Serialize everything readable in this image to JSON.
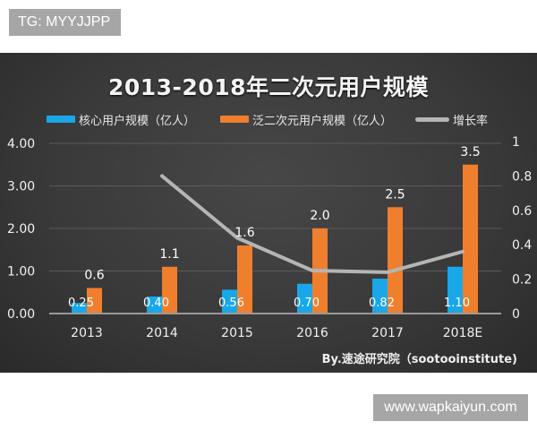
{
  "watermarks": {
    "top": "TG: MYYJJPP",
    "bottom": "www.wapkaiyun.com"
  },
  "chart_data": {
    "type": "bar",
    "title": "2013-2018年二次元用户规模",
    "categories": [
      "2013",
      "2014",
      "2015",
      "2016",
      "2017",
      "2018E"
    ],
    "series": [
      {
        "name": "核心用户规模（亿人）",
        "type": "bar",
        "axis": "left",
        "color": "#1aa7e8",
        "values": [
          0.25,
          0.4,
          0.56,
          0.7,
          0.82,
          1.1
        ],
        "labels": [
          "0.25",
          "0.40",
          "0.56",
          "0.70",
          "0.82",
          "1.10"
        ]
      },
      {
        "name": "泛二次元用户规模（亿人）",
        "type": "bar",
        "axis": "left",
        "color": "#f07f2d",
        "values": [
          0.6,
          1.1,
          1.6,
          2.0,
          2.5,
          3.5
        ],
        "labels": [
          "0.6",
          "1.1",
          "1.6",
          "2.0",
          "2.5",
          "3.5"
        ]
      },
      {
        "name": "增长率",
        "type": "line",
        "axis": "right",
        "color": "#b5b5b5",
        "values": [
          null,
          0.8,
          0.44,
          0.25,
          0.24,
          0.36
        ]
      }
    ],
    "y_left": {
      "ticks": [
        "0.00",
        "1.00",
        "2.00",
        "3.00",
        "4.00"
      ],
      "range": [
        0,
        4
      ]
    },
    "y_right": {
      "ticks": [
        "0",
        "0.2",
        "0.4",
        "0.6",
        "0.8",
        "1"
      ],
      "range": [
        0,
        1
      ]
    },
    "grid": true,
    "legend_position": "top",
    "xlabel": "",
    "ylabel": "",
    "source": "By.速途研究院（sootooinstitute)"
  },
  "legend": {
    "core": "核心用户规模（亿人）",
    "pan": "泛二次元用户规模（亿人）",
    "growth": "增长率"
  }
}
